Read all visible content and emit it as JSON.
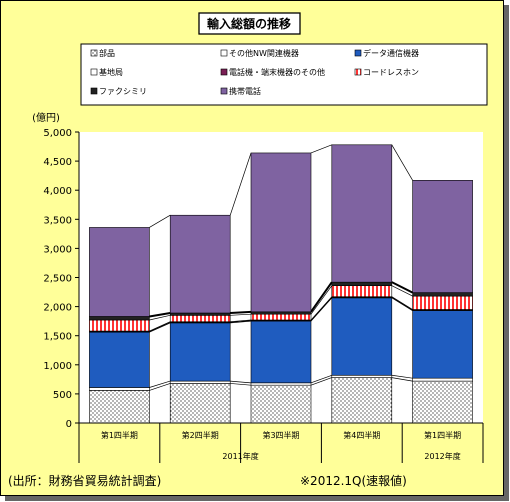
{
  "chart_data": {
    "type": "bar",
    "stacked": true,
    "title": "輸入総額の推移",
    "ylabel": "(億円)",
    "ylim": [
      0,
      5000
    ],
    "yticks": [
      "0",
      "500",
      "1,000",
      "1,500",
      "2,000",
      "2,500",
      "3,000",
      "3,500",
      "4,000",
      "4,500",
      "5,000"
    ],
    "categories": [
      "第1四半期",
      "第2四半期",
      "第3四半期",
      "第4四半期",
      "第1四半期"
    ],
    "year_groups": [
      {
        "label": "2011年度",
        "from": 0,
        "to": 3
      },
      {
        "label": "2012年度",
        "from": 4,
        "to": 4
      }
    ],
    "grid": false,
    "legend_position": "top",
    "series": [
      {
        "name": "部品",
        "values": [
          560,
          680,
          650,
          780,
          720
        ],
        "color": "#ffffff",
        "pattern": "dots"
      },
      {
        "name": "その他NW関連機器",
        "values": [
          50,
          40,
          40,
          40,
          50
        ],
        "color": "#ffffff",
        "pattern": "none"
      },
      {
        "name": "データ通信機器",
        "values": [
          950,
          1000,
          1060,
          1330,
          1160
        ],
        "color": "#1f5cbf",
        "pattern": "none"
      },
      {
        "name": "基地局",
        "values": [
          10,
          10,
          10,
          10,
          10
        ],
        "color": "#ffffff",
        "pattern": "none"
      },
      {
        "name": "電話機・端末機器のその他",
        "values": [
          10,
          10,
          10,
          10,
          10
        ],
        "color": "#7a1e55",
        "pattern": "none"
      },
      {
        "name": "コードレスホン",
        "values": [
          190,
          110,
          100,
          190,
          230
        ],
        "color": "#ff9999",
        "pattern": "vstripes"
      },
      {
        "name": "ファクシミリ",
        "values": [
          60,
          40,
          40,
          60,
          60
        ],
        "color": "#222222",
        "pattern": "none"
      },
      {
        "name": "携帯電話",
        "values": [
          1530,
          1680,
          2730,
          2360,
          1930
        ],
        "color": "#7f63a1",
        "pattern": "none"
      }
    ]
  },
  "footnote_source": "(出所：財務省貿易統計調査)",
  "footnote_note": "※2012.1Q(速報値)"
}
